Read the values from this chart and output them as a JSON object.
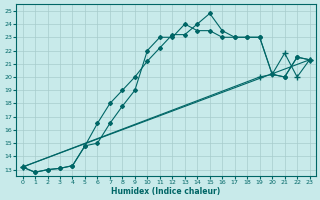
{
  "xlabel": "Humidex (Indice chaleur)",
  "ylabel": "",
  "xlim": [
    -0.5,
    23.5
  ],
  "ylim": [
    12.5,
    25.5
  ],
  "xticks": [
    0,
    1,
    2,
    3,
    4,
    5,
    6,
    7,
    8,
    9,
    10,
    11,
    12,
    13,
    14,
    15,
    16,
    17,
    18,
    19,
    20,
    21,
    22,
    23
  ],
  "yticks": [
    13,
    14,
    15,
    16,
    17,
    18,
    19,
    20,
    21,
    22,
    23,
    24,
    25
  ],
  "line_color": "#006666",
  "bg_color": "#c8eaea",
  "grid_color": "#a8cccc",
  "lines": [
    {
      "x": [
        0,
        1,
        2,
        3,
        4,
        5,
        6,
        7,
        8,
        9,
        10,
        11,
        12,
        13,
        14,
        15,
        16,
        17,
        18,
        19,
        20,
        21,
        22,
        23
      ],
      "y": [
        13.2,
        12.8,
        13.0,
        13.1,
        13.3,
        14.8,
        16.5,
        18.0,
        19.0,
        20.0,
        21.2,
        22.2,
        23.2,
        23.2,
        24.0,
        24.8,
        23.5,
        23.0,
        23.0,
        23.0,
        20.2,
        20.0,
        21.5,
        21.3
      ]
    },
    {
      "x": [
        0,
        1,
        2,
        3,
        4,
        5,
        6,
        7,
        8,
        9,
        10,
        11,
        12,
        13,
        14,
        15,
        16,
        17,
        18,
        19,
        20,
        21,
        22,
        23
      ],
      "y": [
        13.2,
        12.8,
        13.0,
        13.1,
        13.3,
        14.8,
        15.0,
        16.5,
        17.8,
        19.0,
        22.0,
        23.0,
        23.0,
        24.0,
        23.5,
        23.5,
        23.0,
        23.0,
        23.0,
        23.0,
        20.2,
        20.0,
        21.5,
        21.3
      ]
    },
    {
      "x": [
        0,
        23
      ],
      "y": [
        13.2,
        21.3
      ]
    },
    {
      "x": [
        0,
        19,
        20,
        21,
        22,
        23
      ],
      "y": [
        13.2,
        20.0,
        20.2,
        21.8,
        20.0,
        21.3
      ]
    }
  ]
}
